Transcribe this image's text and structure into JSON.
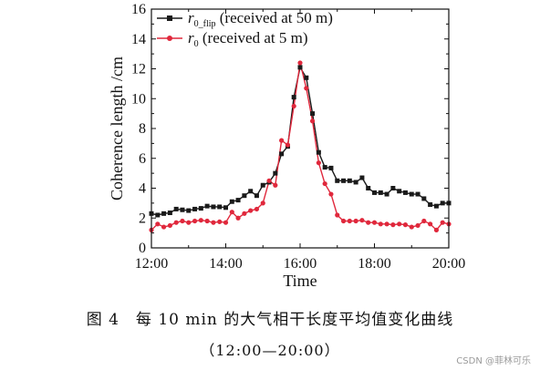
{
  "chart_data": {
    "type": "line",
    "xlabel": "Time",
    "ylabel": "Coherence length /cm",
    "xlim": [
      12,
      20
    ],
    "ylim": [
      0,
      16
    ],
    "x_ticks": [
      12,
      14,
      16,
      18,
      20
    ],
    "x_tick_labels": [
      "12:00",
      "14:00",
      "16:00",
      "18:00",
      "20:00"
    ],
    "y_ticks": [
      0,
      2,
      4,
      6,
      8,
      10,
      12,
      14,
      16
    ],
    "y_tick_labels": [
      "0",
      "2",
      "4",
      "6",
      "8",
      "10",
      "12",
      "14",
      "16"
    ],
    "grid": false,
    "legend_position": "top-left",
    "series": [
      {
        "legend_symbol": "r",
        "legend_subscript": "0_flip",
        "legend_suffix": " (received at 50 m)",
        "color": "#1a1a1a",
        "marker": "square",
        "x": [
          12.0,
          12.167,
          12.333,
          12.5,
          12.667,
          12.833,
          13.0,
          13.167,
          13.333,
          13.5,
          13.667,
          13.833,
          14.0,
          14.167,
          14.333,
          14.5,
          14.667,
          14.833,
          15.0,
          15.167,
          15.333,
          15.5,
          15.667,
          15.833,
          16.0,
          16.167,
          16.333,
          16.5,
          16.667,
          16.833,
          17.0,
          17.167,
          17.333,
          17.5,
          17.667,
          17.833,
          18.0,
          18.167,
          18.333,
          18.5,
          18.667,
          18.833,
          19.0,
          19.167,
          19.333,
          19.5,
          19.667,
          19.833,
          20.0
        ],
        "y": [
          2.3,
          2.2,
          2.3,
          2.35,
          2.6,
          2.55,
          2.5,
          2.6,
          2.65,
          2.8,
          2.75,
          2.75,
          2.7,
          3.1,
          3.2,
          3.5,
          3.8,
          3.5,
          4.2,
          4.4,
          5.0,
          6.3,
          6.8,
          10.1,
          12.1,
          11.4,
          9.0,
          6.4,
          5.4,
          5.35,
          4.5,
          4.5,
          4.5,
          4.4,
          4.7,
          4.0,
          3.7,
          3.7,
          3.6,
          4.0,
          3.8,
          3.7,
          3.6,
          3.6,
          3.3,
          2.9,
          2.8,
          3.0,
          3.0
        ]
      },
      {
        "legend_symbol": "r",
        "legend_subscript": "0",
        "legend_suffix": " (received at 5 m)",
        "color": "#e0283c",
        "marker": "circle",
        "x": [
          12.0,
          12.167,
          12.333,
          12.5,
          12.667,
          12.833,
          13.0,
          13.167,
          13.333,
          13.5,
          13.667,
          13.833,
          14.0,
          14.167,
          14.333,
          14.5,
          14.667,
          14.833,
          15.0,
          15.167,
          15.333,
          15.5,
          15.667,
          15.833,
          16.0,
          16.167,
          16.333,
          16.5,
          16.667,
          16.833,
          17.0,
          17.167,
          17.333,
          17.5,
          17.667,
          17.833,
          18.0,
          18.167,
          18.333,
          18.5,
          18.667,
          18.833,
          19.0,
          19.167,
          19.333,
          19.5,
          19.667,
          19.833,
          20.0
        ],
        "y": [
          1.2,
          1.6,
          1.4,
          1.5,
          1.7,
          1.8,
          1.7,
          1.8,
          1.85,
          1.8,
          1.7,
          1.75,
          1.7,
          2.4,
          2.0,
          2.3,
          2.5,
          2.6,
          3.0,
          4.5,
          4.2,
          7.2,
          6.9,
          9.5,
          12.4,
          10.7,
          8.5,
          5.7,
          4.3,
          3.6,
          2.2,
          1.8,
          1.8,
          1.8,
          1.85,
          1.7,
          1.7,
          1.6,
          1.6,
          1.55,
          1.6,
          1.55,
          1.4,
          1.5,
          1.8,
          1.6,
          1.2,
          1.7,
          1.6
        ]
      }
    ]
  },
  "caption": {
    "line1": "图 4　每 10 min 的大气相干长度平均值变化曲线",
    "line2": "（12:00—20:00）"
  },
  "watermark": "CSDN @菲林可乐"
}
